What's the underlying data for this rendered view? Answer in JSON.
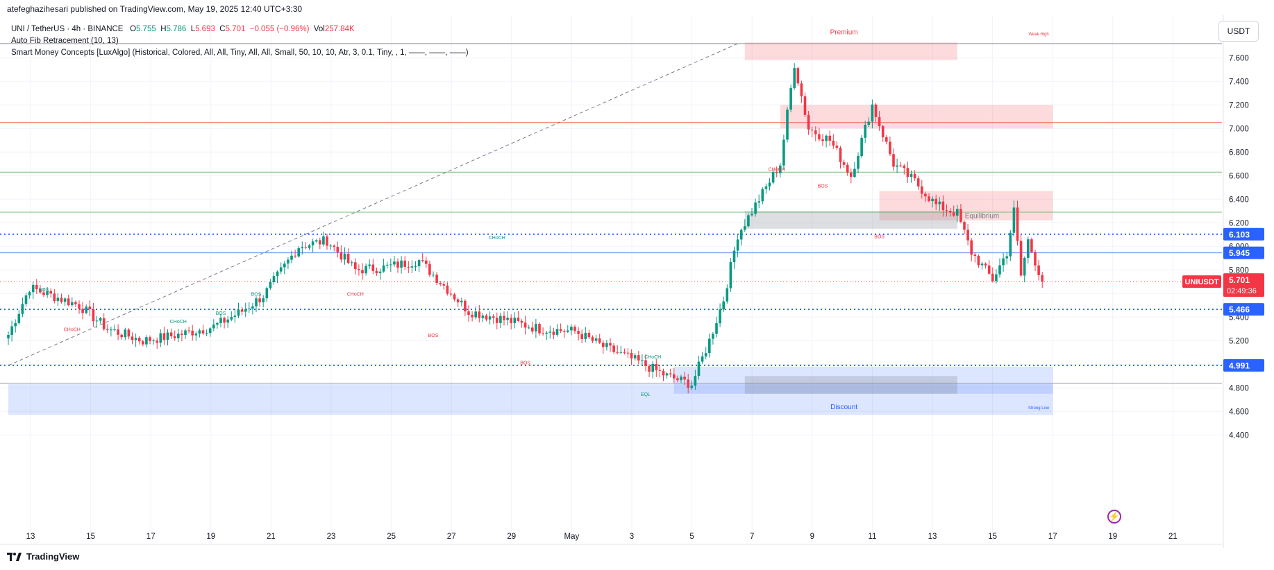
{
  "header": {
    "publisher_line": "atefeghazihesari published on TradingView.com, May 19, 2025 12:40 UTC+3:30"
  },
  "legend": {
    "symbol": "UNI / TetherUS · 4h · BINANCE",
    "o_label": "O",
    "o_value": "5.755",
    "h_label": "H",
    "h_value": "5.786",
    "l_label": "L",
    "l_value": "5.693",
    "c_label": "C",
    "c_value": "5.701",
    "change": "−0.055 (−0.96%)",
    "vol_label": "Vol",
    "vol_value": "257.84K",
    "indicator1": "Auto Fib Retracement (10, 13)",
    "indicator2": "Smart Money Concepts [LuxAlgo] (Historical, Colored, All, All, Tiny, All, All, Small, 50, 10, 10, Atr, 3, 0.1, Tiny, , 1, ——, ——, ——)"
  },
  "currency_button": "USDT",
  "branding": "TradingView",
  "colors": {
    "up": "#089981",
    "down": "#f23645",
    "blue": "#2962ff",
    "fib_green": "#4caf50",
    "fib_red": "#f44336",
    "premium_fill": "#f23645",
    "discount_fill": "#2962ff"
  },
  "chart_data": {
    "type": "candlestick",
    "symbol": "UNIUSDT",
    "interval": "4h",
    "ylim": [
      4.3,
      7.85
    ],
    "yticks": [
      "7.600",
      "7.400",
      "7.200",
      "7.000",
      "6.800",
      "6.600",
      "6.400",
      "6.200",
      "6.000",
      "5.800",
      "5.600",
      "5.400",
      "5.200",
      "5.000",
      "4.800",
      "4.600",
      "4.400"
    ],
    "xticks": [
      "13",
      "15",
      "17",
      "19",
      "21",
      "23",
      "25",
      "27",
      "29",
      "May",
      "3",
      "5",
      "7",
      "9",
      "11",
      "13",
      "15",
      "17",
      "19",
      "21"
    ],
    "anchors": [
      {
        "i": 0,
        "c": 5.25
      },
      {
        "i": 6,
        "c": 5.65
      },
      {
        "i": 20,
        "c": 5.5
      },
      {
        "i": 28,
        "c": 5.3
      },
      {
        "i": 38,
        "c": 5.2
      },
      {
        "i": 48,
        "c": 5.25
      },
      {
        "i": 58,
        "c": 5.32
      },
      {
        "i": 66,
        "c": 5.45
      },
      {
        "i": 72,
        "c": 5.58
      },
      {
        "i": 82,
        "c": 6.0
      },
      {
        "i": 90,
        "c": 6.05
      },
      {
        "i": 98,
        "c": 5.8
      },
      {
        "i": 106,
        "c": 5.82
      },
      {
        "i": 116,
        "c": 5.88
      },
      {
        "i": 122,
        "c": 5.7
      },
      {
        "i": 130,
        "c": 5.45
      },
      {
        "i": 140,
        "c": 5.38
      },
      {
        "i": 150,
        "c": 5.3
      },
      {
        "i": 160,
        "c": 5.28
      },
      {
        "i": 168,
        "c": 5.15
      },
      {
        "i": 178,
        "c": 5.02
      },
      {
        "i": 186,
        "c": 4.9
      },
      {
        "i": 193,
        "c": 4.83
      },
      {
        "i": 198,
        "c": 5.2
      },
      {
        "i": 202,
        "c": 5.55
      },
      {
        "i": 206,
        "c": 6.1
      },
      {
        "i": 212,
        "c": 6.4
      },
      {
        "i": 218,
        "c": 6.7
      },
      {
        "i": 222,
        "c": 7.55
      },
      {
        "i": 226,
        "c": 7.0
      },
      {
        "i": 232,
        "c": 6.9
      },
      {
        "i": 238,
        "c": 6.6
      },
      {
        "i": 244,
        "c": 7.2
      },
      {
        "i": 250,
        "c": 6.7
      },
      {
        "i": 256,
        "c": 6.55
      },
      {
        "i": 262,
        "c": 6.35
      },
      {
        "i": 268,
        "c": 6.28
      },
      {
        "i": 272,
        "c": 5.95
      },
      {
        "i": 278,
        "c": 5.72
      },
      {
        "i": 282,
        "c": 5.95
      },
      {
        "i": 284,
        "c": 6.3
      },
      {
        "i": 286,
        "c": 5.75
      },
      {
        "i": 288,
        "c": 6.05
      },
      {
        "i": 292,
        "c": 5.701
      }
    ],
    "current_price": "5.701",
    "price_tag_symbol": "UNIUSDT",
    "countdown": "02:49:36",
    "price_labels": [
      {
        "value": 6.103,
        "text": "6.103"
      },
      {
        "value": 5.945,
        "text": "5.945"
      },
      {
        "value": 5.466,
        "text": "5.466"
      },
      {
        "value": 4.991,
        "text": "4.991"
      }
    ],
    "fib_levels": [
      {
        "value": 7.72,
        "color": "#787b86"
      },
      {
        "value": 7.05,
        "color": "#f44336"
      },
      {
        "value": 6.63,
        "color": "#4caf50"
      },
      {
        "value": 6.29,
        "color": "#4caf50"
      },
      {
        "value": 5.945,
        "color": "#2962ff"
      },
      {
        "value": 4.84,
        "color": "#787b86"
      }
    ],
    "zones": [
      {
        "i0": 208,
        "i1": 268,
        "p0": 7.58,
        "p1": 7.73,
        "type": "premium"
      },
      {
        "i0": 218,
        "i1": 295,
        "p0": 7.0,
        "p1": 7.2,
        "type": "premium"
      },
      {
        "i0": 246,
        "i1": 295,
        "p0": 6.22,
        "p1": 6.47,
        "type": "premium"
      },
      {
        "i0": 208,
        "i1": 268,
        "p0": 6.15,
        "p1": 6.3,
        "type": "equilibrium"
      },
      {
        "i0": 0,
        "i1": 295,
        "p0": 4.57,
        "p1": 4.83,
        "type": "discount"
      },
      {
        "i0": 188,
        "i1": 295,
        "p0": 4.75,
        "p1": 4.98,
        "type": "discount"
      },
      {
        "i0": 208,
        "i1": 268,
        "p0": 4.75,
        "p1": 4.9,
        "type": "equilibrium"
      }
    ],
    "structure_labels": [
      {
        "i": 10,
        "p": 5.62,
        "text": "BOS",
        "color": "up"
      },
      {
        "i": 18,
        "p": 5.28,
        "text": "CHoCH",
        "color": "dn"
      },
      {
        "i": 48,
        "p": 5.35,
        "text": "CHoCH",
        "color": "up"
      },
      {
        "i": 60,
        "p": 5.42,
        "text": "BOS",
        "color": "up"
      },
      {
        "i": 70,
        "p": 5.58,
        "text": "BOS",
        "color": "up"
      },
      {
        "i": 138,
        "p": 6.06,
        "text": "CHoCH",
        "color": "up"
      },
      {
        "i": 98,
        "p": 5.58,
        "text": "CHoCH",
        "color": "dn"
      },
      {
        "i": 120,
        "p": 5.23,
        "text": "BOS",
        "color": "dn"
      },
      {
        "i": 146,
        "p": 5.0,
        "text": "BOS",
        "color": "dn"
      },
      {
        "i": 182,
        "p": 5.05,
        "text": "CHoCH",
        "color": "up"
      },
      {
        "i": 180,
        "p": 4.73,
        "text": "EQL",
        "color": "up"
      },
      {
        "i": 217,
        "p": 6.64,
        "text": "CHoCH",
        "color": "dn"
      },
      {
        "i": 230,
        "p": 6.5,
        "text": "BOS",
        "color": "dn"
      },
      {
        "i": 246,
        "p": 6.07,
        "text": "BOS",
        "color": "dn"
      }
    ],
    "zone_labels": [
      {
        "i": 236,
        "p": 7.8,
        "text": "Premium"
      },
      {
        "i": 275,
        "p": 6.24,
        "text": "Equilibrium"
      },
      {
        "i": 236,
        "p": 4.62,
        "text": "Discount"
      },
      {
        "i": 291,
        "p": 7.79,
        "text": "Weak High"
      },
      {
        "i": 291,
        "p": 4.62,
        "text": "Strong Low"
      }
    ]
  }
}
